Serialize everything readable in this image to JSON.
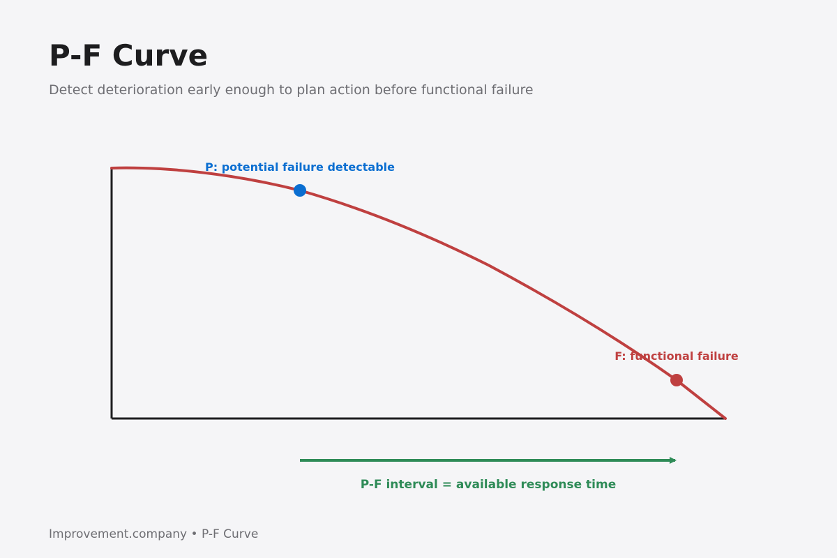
{
  "header": {
    "title": "P-F Curve",
    "subtitle": "Detect deterioration early enough to plan action before functional failure"
  },
  "diagram": {
    "p_point_label": "P: potential failure detectable",
    "f_point_label": "F: functional failure",
    "interval_label": "P-F interval = available response time",
    "colors": {
      "curve": "#bf4040",
      "p_point": "#0a6ed1",
      "f_point": "#bf4040",
      "interval": "#2e8b57",
      "axis": "#1d1d1f"
    }
  },
  "footer": {
    "text": "Improvement.company • P-F Curve"
  }
}
